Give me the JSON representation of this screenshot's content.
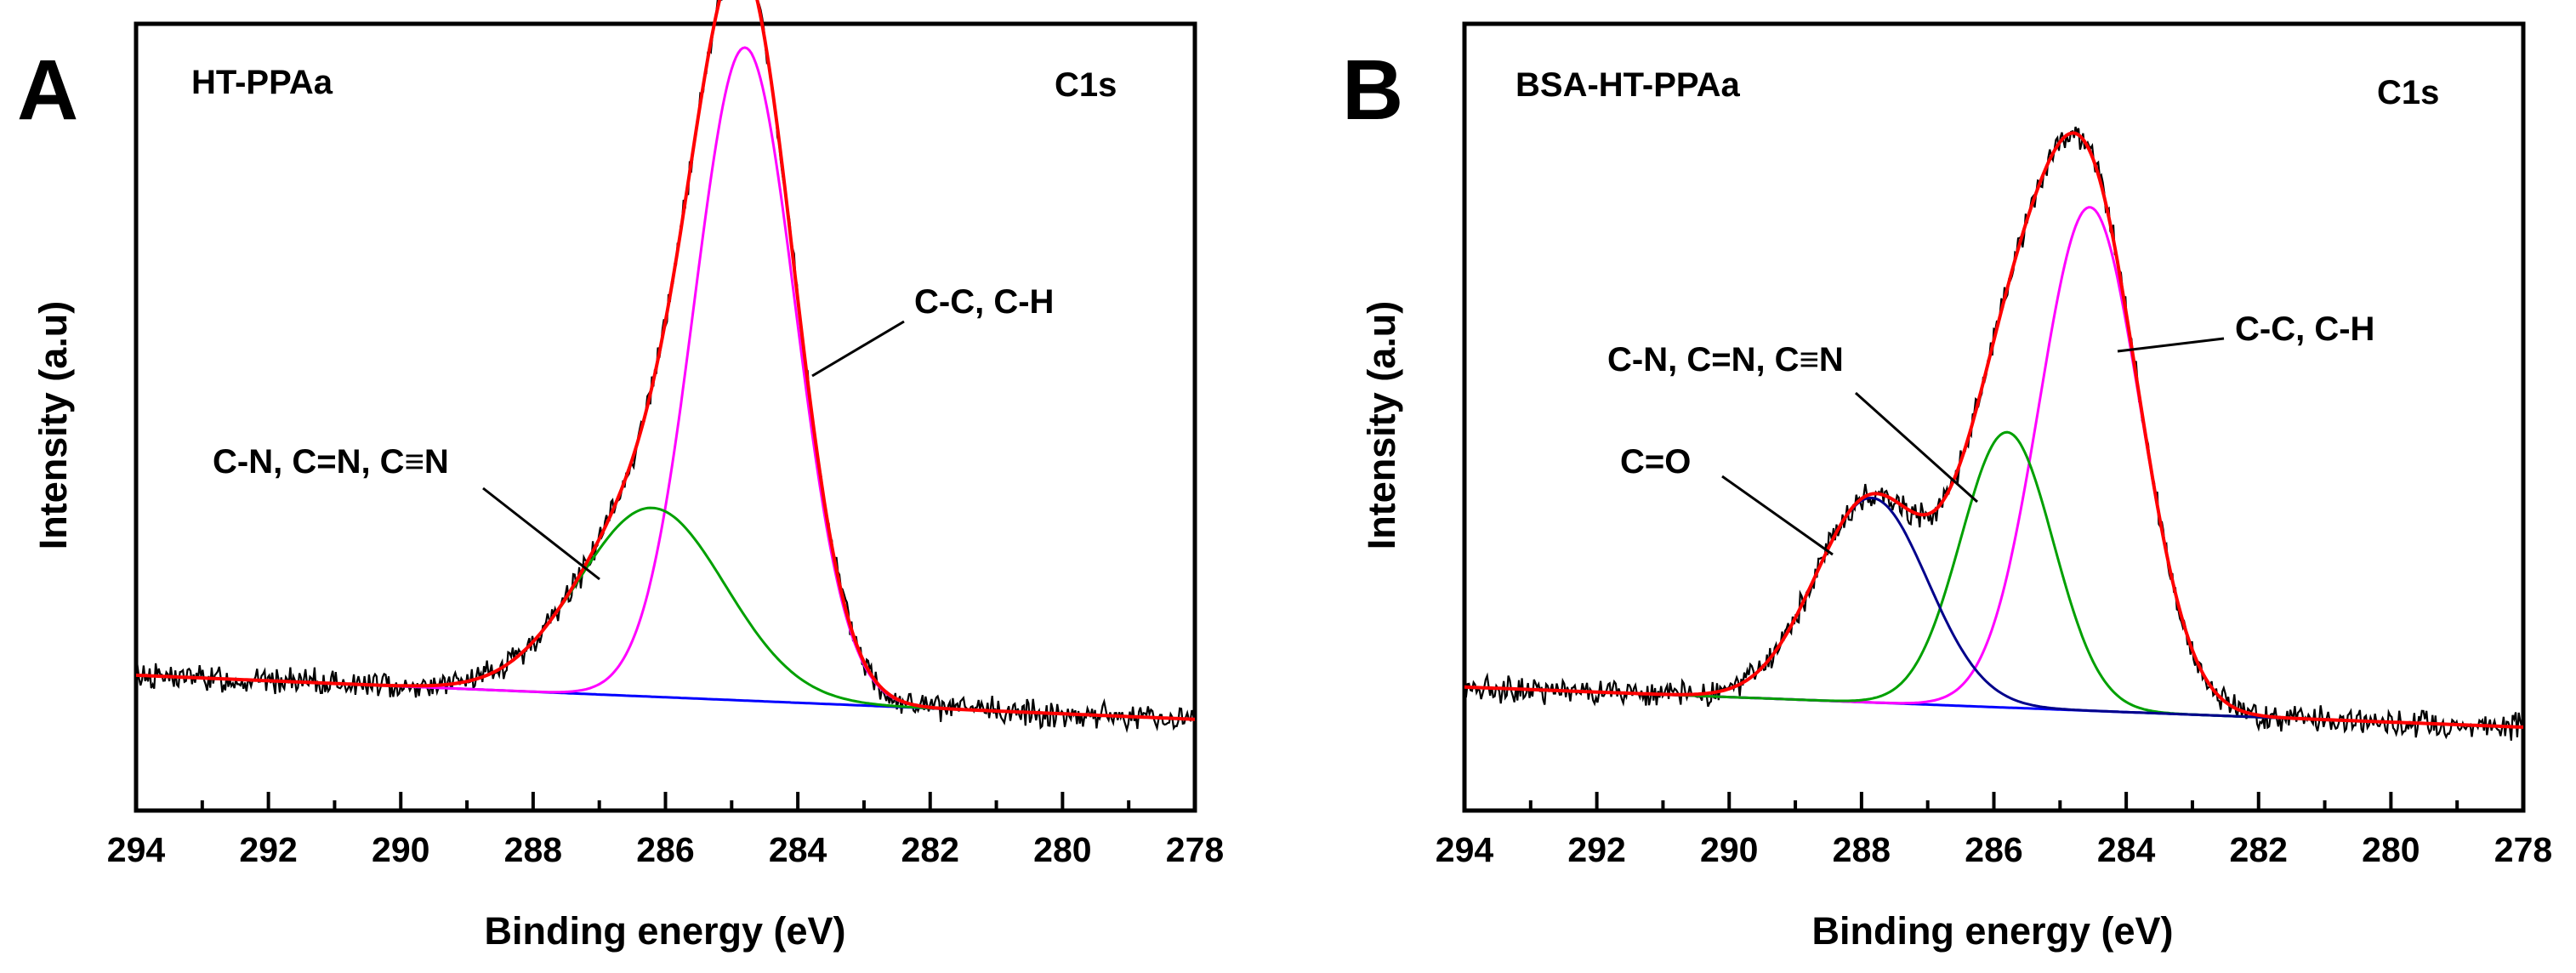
{
  "chart_data": [
    {
      "type": "line",
      "panel": "A",
      "sample_label": "HT-PPAa",
      "region_label": "C1s",
      "xlabel": "Binding energy (eV)",
      "ylabel": "Intensity (a.u)",
      "xlim": [
        294,
        278
      ],
      "ylim": [
        0,
        100
      ],
      "x_ticks": [
        294,
        292,
        290,
        288,
        286,
        284,
        282,
        280,
        278
      ],
      "y_ticks": [],
      "colors": {
        "raw": "#000000",
        "envelope": "#ff0000",
        "baseline": "#0000ff"
      },
      "baseline": {
        "start": 17.2,
        "end": 11.6
      },
      "components": [
        {
          "name": "C-C, C-H",
          "center": 284.8,
          "fwhm": 1.8,
          "height": 83,
          "color": "#ff00ff"
        },
        {
          "name": "C-N, C=N, C≡N",
          "center": 286.2,
          "fwhm": 2.6,
          "height": 24,
          "color": "#00a000"
        }
      ],
      "peak_labels": [
        {
          "text": "C-C, C-H",
          "position": "right of main peak"
        },
        {
          "text": "C-N, C=N, C≡N",
          "position": "left shoulder"
        }
      ]
    },
    {
      "type": "line",
      "panel": "B",
      "sample_label": "BSA-HT-PPAa",
      "region_label": "C1s",
      "xlabel": "Binding energy (eV)",
      "ylabel": "Intensity (a.u)",
      "xlim": [
        294,
        278
      ],
      "ylim": [
        0,
        100
      ],
      "x_ticks": [
        294,
        292,
        290,
        288,
        286,
        284,
        282,
        280,
        278
      ],
      "y_ticks": [],
      "colors": {
        "raw": "#000000",
        "envelope": "#ff0000",
        "baseline": "#0000ff"
      },
      "baseline": {
        "start": 15.7,
        "end": 10.6
      },
      "components": [
        {
          "name": "C-C, C-H",
          "center": 284.55,
          "fwhm": 1.8,
          "height": 64,
          "color": "#ff00ff"
        },
        {
          "name": "C-N, C=N, C≡N",
          "center": 285.8,
          "fwhm": 1.65,
          "height": 35,
          "color": "#00a000"
        },
        {
          "name": "C=O",
          "center": 287.85,
          "fwhm": 2.0,
          "height": 26,
          "color": "#00008b"
        }
      ],
      "peak_labels": [
        {
          "text": "C-C, C-H",
          "position": "right of main peak"
        },
        {
          "text": "C-N, C=N, C≡N",
          "position": "upper left"
        },
        {
          "text": "C=O",
          "position": "left"
        }
      ]
    }
  ]
}
